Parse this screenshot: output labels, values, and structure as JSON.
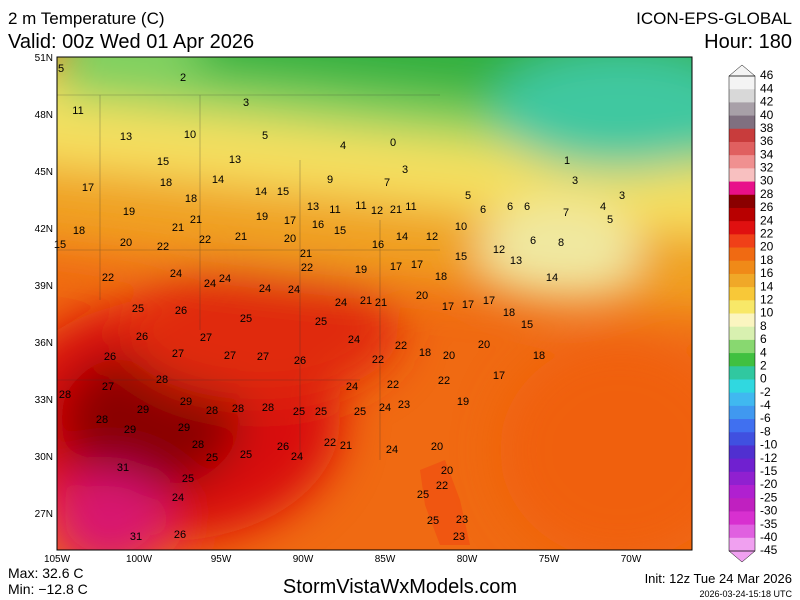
{
  "header": {
    "title": "2 m Temperature (C)",
    "valid": "Valid: 00z Wed 01 Apr 2026",
    "model": "ICON-EPS-GLOBAL",
    "hour": "Hour: 180"
  },
  "map": {
    "lat_labels": [
      "51N",
      "48N",
      "45N",
      "42N",
      "39N",
      "36N",
      "33N",
      "30N",
      "27N"
    ],
    "lon_labels": [
      "105W",
      "100W",
      "95W",
      "90W",
      "85W",
      "80W",
      "75W",
      "70W"
    ],
    "station_values": [
      5,
      2,
      3,
      11,
      13,
      10,
      5,
      4,
      0,
      13,
      15,
      14,
      14,
      15,
      17,
      18,
      18,
      9,
      7,
      3,
      1,
      3,
      19,
      21,
      19,
      17,
      13,
      11,
      11,
      12,
      21,
      11,
      5,
      6,
      6,
      6,
      7,
      4,
      5,
      3,
      18,
      15,
      20,
      22,
      21,
      22,
      21,
      20,
      16,
      15,
      16,
      14,
      12,
      10,
      12,
      6,
      8,
      22,
      24,
      24,
      24,
      24,
      24,
      22,
      21,
      19,
      17,
      17,
      18,
      15,
      13,
      14,
      25,
      26,
      25,
      25,
      24,
      21,
      21,
      20,
      17,
      17,
      17,
      18,
      15,
      26,
      27,
      27,
      27,
      26,
      24,
      22,
      22,
      18,
      20,
      20,
      18,
      26,
      27,
      28,
      24,
      22,
      22,
      17,
      27,
      29,
      28,
      28,
      28,
      25,
      25,
      25,
      24,
      23,
      19,
      28,
      28,
      29,
      29,
      29,
      28,
      22,
      21,
      24,
      20,
      31,
      25,
      25,
      26,
      24,
      20,
      25,
      22,
      25,
      24,
      25,
      23,
      31,
      26,
      23
    ]
  },
  "colorbar": {
    "labels": [
      46,
      44,
      42,
      40,
      38,
      36,
      34,
      32,
      30,
      28,
      26,
      24,
      22,
      20,
      18,
      16,
      14,
      12,
      10,
      8,
      6,
      4,
      2,
      0,
      -2,
      -4,
      -6,
      -8,
      -10,
      -12,
      -15,
      -20,
      -25,
      -30,
      -35,
      -40,
      -45
    ]
  },
  "footer": {
    "max": "Max: 32.6 C",
    "min": "Min: −12.8 C",
    "site": "StormVistaWxModels.com",
    "init": "Init: 12z Tue 24 Mar 2026",
    "stamp": "2026-03-24-15:18 UTC"
  }
}
